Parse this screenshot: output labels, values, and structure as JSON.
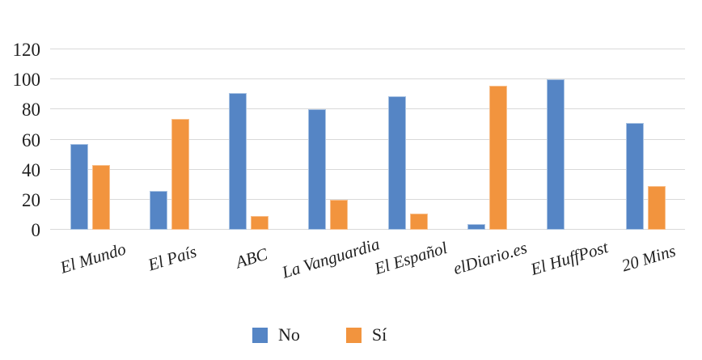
{
  "chart_data": {
    "type": "bar",
    "title": "",
    "xlabel": "",
    "ylabel": "",
    "categories": [
      "El Mundo",
      "El País",
      "ABC",
      "La Vanguardia",
      "El Español",
      "elDiario.es",
      "El HuffPost",
      "20 Mins"
    ],
    "series": [
      {
        "name": "No",
        "color": "#5585c5",
        "values": [
          57,
          26,
          91,
          80,
          89,
          4,
          100,
          71
        ]
      },
      {
        "name": "Sí",
        "color": "#f2943e",
        "values": [
          43,
          74,
          9,
          20,
          11,
          96,
          0,
          29
        ]
      }
    ],
    "ylim": [
      0,
      120
    ],
    "yticks": [
      0,
      20,
      40,
      60,
      80,
      100,
      120
    ],
    "grid": true,
    "gridline_color": "#d9d9d9",
    "legend_position": "bottom"
  }
}
